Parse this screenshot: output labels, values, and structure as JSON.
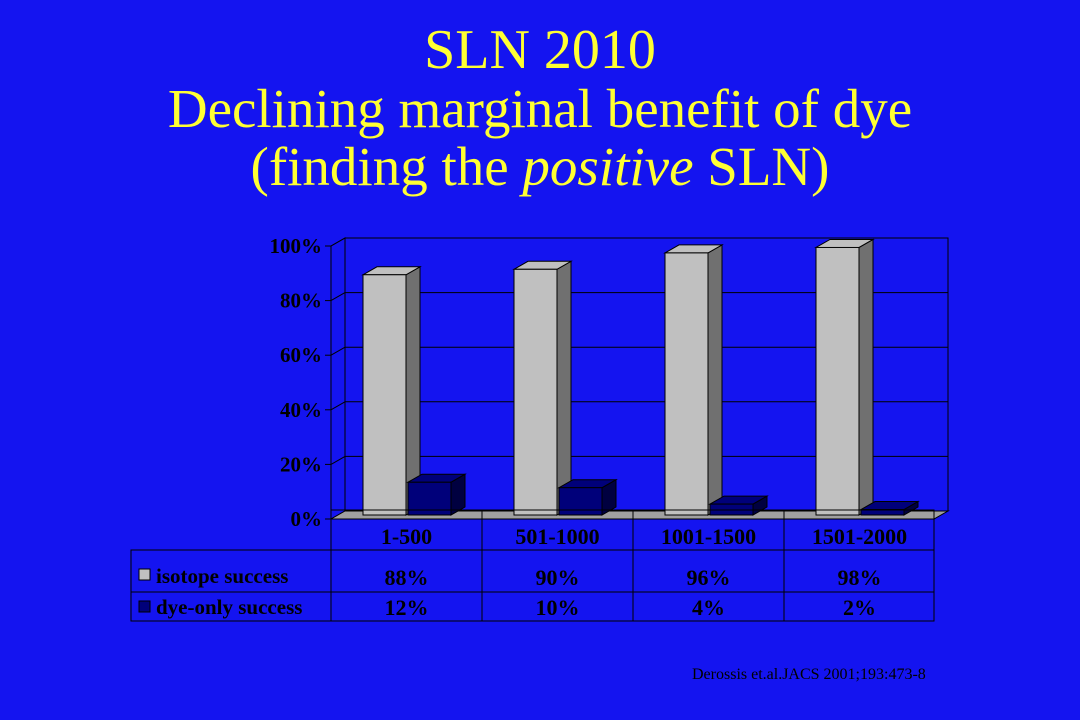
{
  "title": {
    "line1": "SLN 2010",
    "line2": "Declining marginal benefit of dye",
    "line3_pre": "(finding the ",
    "line3_em": "positive",
    "line3_post": " SLN)"
  },
  "citation": "Derossis et.al.JACS 2001;193:473-8",
  "colors": {
    "background": "#1414f0",
    "title": "#ffff33",
    "isotope": "#c0c0c0",
    "dye": "#00007a"
  },
  "chart_data": {
    "type": "bar",
    "categories": [
      "1-500",
      "501-1000",
      "1001-1500",
      "1501-2000"
    ],
    "series": [
      {
        "name": "isotope success",
        "values": [
          88,
          90,
          96,
          98
        ],
        "labels": [
          "88%",
          "90%",
          "96%",
          "98%"
        ]
      },
      {
        "name": "dye-only success",
        "values": [
          12,
          10,
          4,
          2
        ],
        "labels": [
          "12%",
          "10%",
          "4%",
          "2%"
        ]
      }
    ],
    "ylim": [
      0,
      100
    ],
    "yticks": [
      0,
      20,
      40,
      60,
      80,
      100
    ],
    "ytick_labels": [
      "0%",
      "20%",
      "40%",
      "60%",
      "80%",
      "100%"
    ],
    "grid": true,
    "legend": "data-table"
  }
}
